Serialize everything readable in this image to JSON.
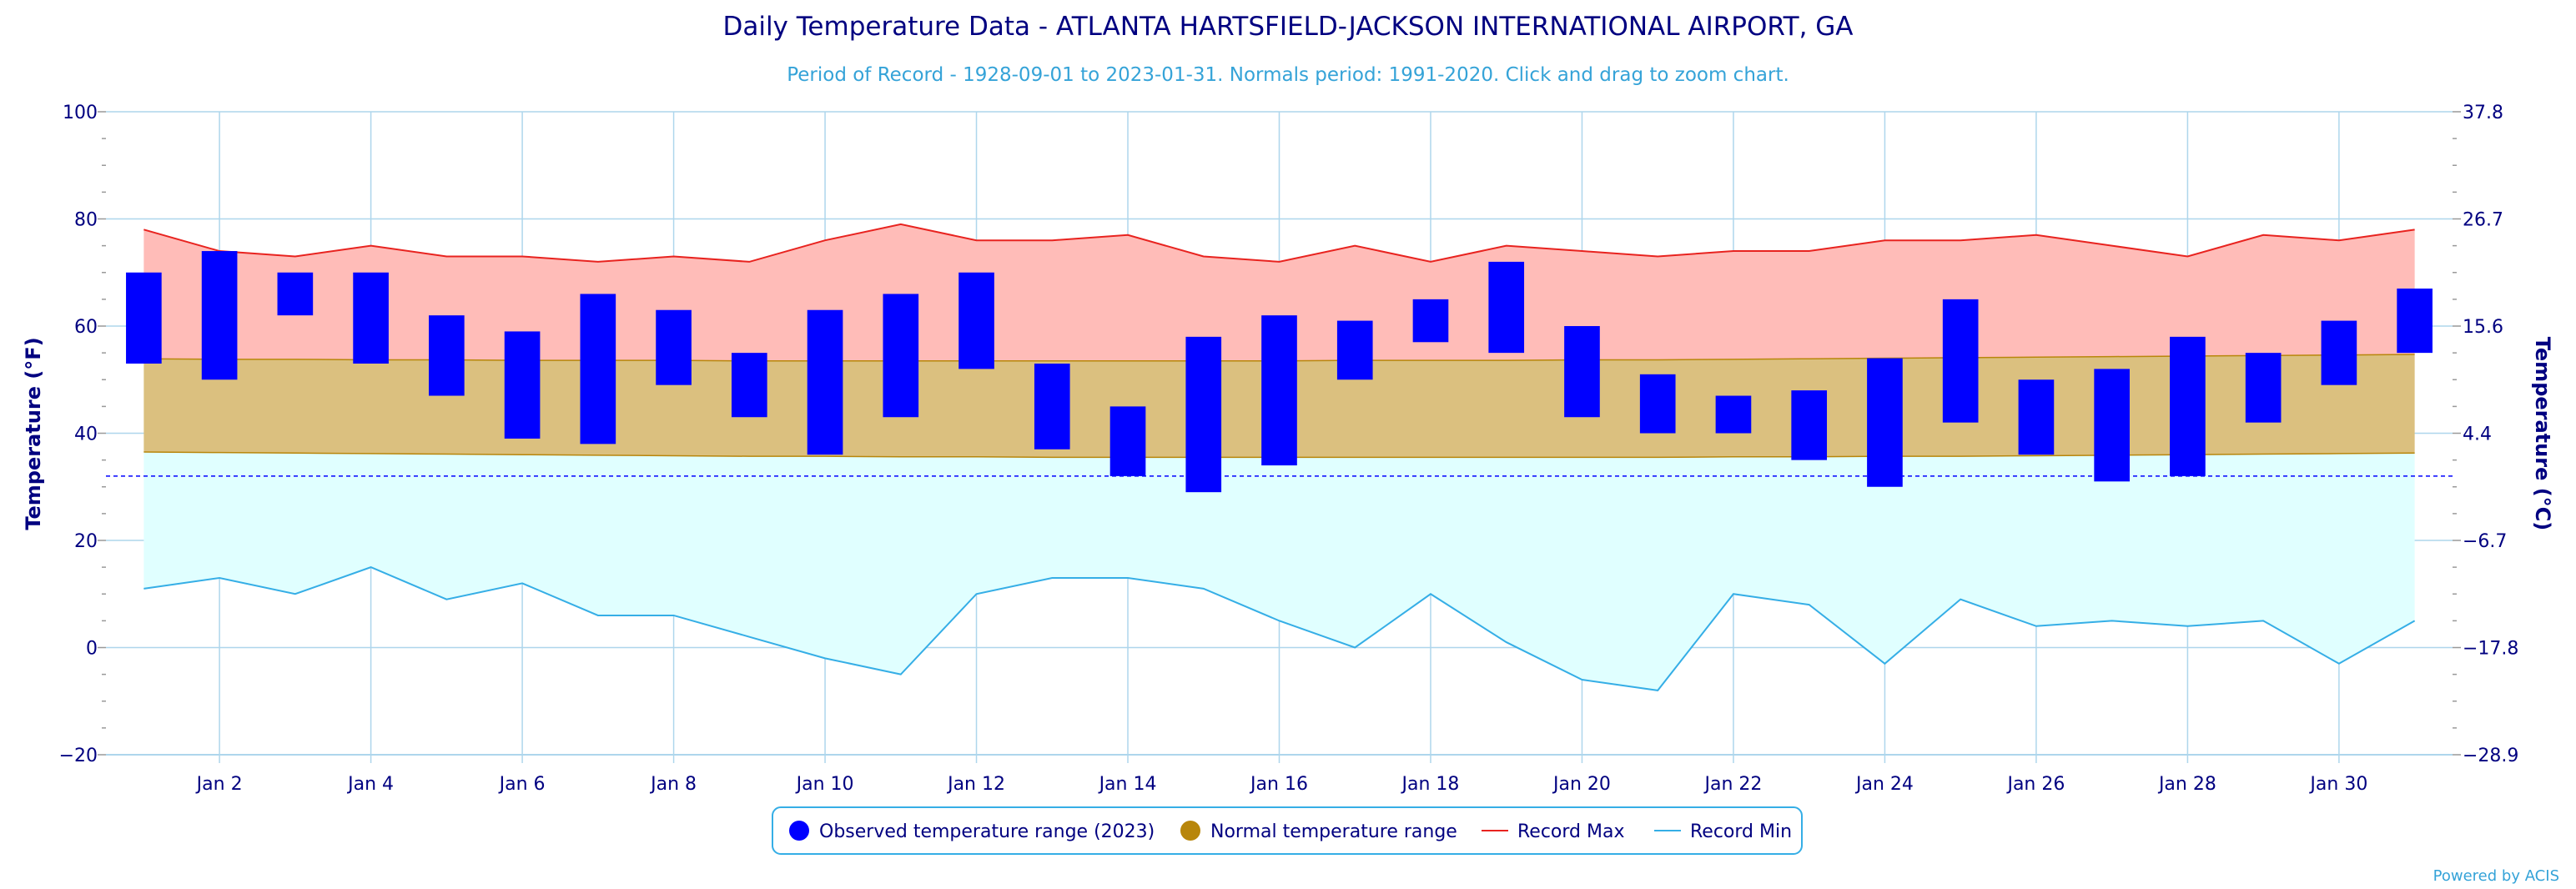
{
  "chart_data": {
    "type": "bar",
    "title": "Daily Temperature Data - ATLANTA HARTSFIELD-JACKSON INTERNATIONAL AIRPORT, GA",
    "subtitle": "Period of Record - 1928-09-01 to 2023-01-31. Normals period: 1991-2020. Click and drag to zoom chart.",
    "ylabel": "Temperature (°F)",
    "ylabel_right": "Temperature (°C)",
    "ylim": [
      -20,
      100
    ],
    "xlim": [
      0.5,
      31.5
    ],
    "freezing_line": 32,
    "y_ticks": [
      "100",
      "80",
      "60",
      "40",
      "20",
      "0",
      "−20"
    ],
    "y_tick_values": [
      100,
      80,
      60,
      40,
      20,
      0,
      -20
    ],
    "y_right_ticks": [
      "37.8",
      "26.7",
      "15.6",
      "4.4",
      "−6.7",
      "−17.8",
      "−28.9"
    ],
    "x_ticks": [
      "Jan 2",
      "Jan 4",
      "Jan 6",
      "Jan 8",
      "Jan 10",
      "Jan 12",
      "Jan 14",
      "Jan 16",
      "Jan 18",
      "Jan 20",
      "Jan 22",
      "Jan 24",
      "Jan 26",
      "Jan 28",
      "Jan 30"
    ],
    "x_tick_days": [
      2,
      4,
      6,
      8,
      10,
      12,
      14,
      16,
      18,
      20,
      22,
      24,
      26,
      28,
      30
    ],
    "days": [
      1,
      2,
      3,
      4,
      5,
      6,
      7,
      8,
      9,
      10,
      11,
      12,
      13,
      14,
      15,
      16,
      17,
      18,
      19,
      20,
      21,
      22,
      23,
      24,
      25,
      26,
      27,
      28,
      29,
      30,
      31
    ],
    "series": [
      {
        "name": "Observed temperature range (2023)",
        "low": [
          53,
          50,
          62,
          53,
          47,
          39,
          38,
          49,
          43,
          36,
          43,
          52,
          37,
          32,
          29,
          34,
          50,
          57,
          55,
          43,
          40,
          40,
          35,
          30,
          42,
          36,
          31,
          32,
          42,
          49,
          55
        ],
        "high": [
          70,
          74,
          70,
          70,
          62,
          59,
          66,
          63,
          55,
          63,
          66,
          70,
          53,
          45,
          58,
          62,
          61,
          65,
          72,
          60,
          51,
          47,
          48,
          54,
          65,
          50,
          52,
          58,
          55,
          61,
          67
        ]
      },
      {
        "name": "Normal temperature range",
        "low": [
          36.5,
          36.4,
          36.3,
          36.2,
          36.1,
          36.0,
          35.9,
          35.8,
          35.7,
          35.7,
          35.6,
          35.6,
          35.5,
          35.5,
          35.5,
          35.5,
          35.5,
          35.5,
          35.5,
          35.5,
          35.5,
          35.6,
          35.6,
          35.7,
          35.7,
          35.8,
          35.9,
          36.0,
          36.1,
          36.2,
          36.3
        ],
        "high": [
          53.9,
          53.8,
          53.8,
          53.7,
          53.7,
          53.6,
          53.6,
          53.6,
          53.5,
          53.5,
          53.5,
          53.5,
          53.5,
          53.5,
          53.5,
          53.5,
          53.6,
          53.6,
          53.6,
          53.7,
          53.7,
          53.8,
          53.9,
          54.0,
          54.1,
          54.2,
          54.3,
          54.4,
          54.5,
          54.6,
          54.7
        ]
      },
      {
        "name": "Record Max",
        "values": [
          78,
          74,
          73,
          75,
          73,
          73,
          72,
          73,
          72,
          76,
          79,
          76,
          76,
          77,
          73,
          72,
          75,
          72,
          75,
          74,
          73,
          74,
          74,
          76,
          76,
          77,
          75,
          73,
          77,
          76,
          78
        ]
      },
      {
        "name": "Record Min",
        "values": [
          11,
          13,
          10,
          15,
          9,
          12,
          6,
          6,
          2,
          -2,
          -5,
          10,
          13,
          13,
          11,
          5,
          0,
          10,
          1,
          -6,
          -8,
          10,
          8,
          -3,
          9,
          4,
          5,
          4,
          5,
          -3,
          5
        ]
      }
    ],
    "colors": {
      "observed": "#0000ff",
      "normal": "#dbc07f",
      "normal_legend": "#b8860b",
      "normal_line": "#b8860b",
      "record_max_fill": "#ffbcb8",
      "record_max_line": "#e8231f",
      "record_min_fill": "#e0ffff",
      "record_min_line": "#35aee6",
      "grid": "#aed6ec",
      "freezing": "#0000ff",
      "title": "#000080",
      "subtitle": "#35a3d8"
    },
    "legend_position": "bottom-center",
    "credit": "Powered by ACIS"
  }
}
